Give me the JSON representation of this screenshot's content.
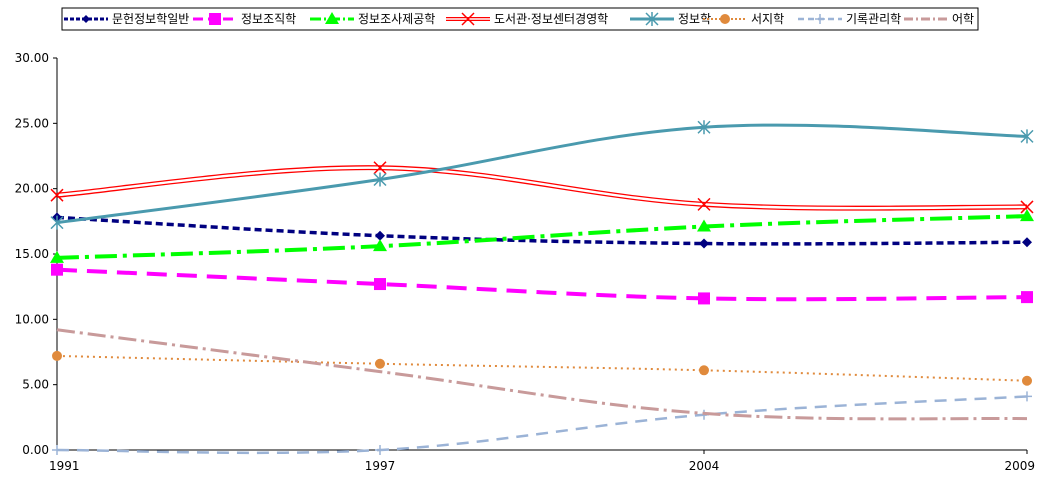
{
  "chart_data": {
    "type": "line",
    "categories": [
      "1991",
      "1997",
      "2004",
      "2009"
    ],
    "ylim": [
      0,
      30
    ],
    "yticks": [
      "0.00",
      "5.00",
      "10.00",
      "15.00",
      "20.00",
      "25.00",
      "30.00"
    ],
    "grid": false,
    "legend_position": "top",
    "series": [
      {
        "name": "문헌정보학일반",
        "values": [
          17.8,
          16.4,
          15.8,
          15.9
        ],
        "color": "#000080",
        "dash": "7,4",
        "width": 3.5,
        "marker": "diamond"
      },
      {
        "name": "정보조직학",
        "values": [
          13.8,
          12.7,
          11.6,
          11.7
        ],
        "color": "#FF00FF",
        "dash": "20,10",
        "width": 4,
        "marker": "square"
      },
      {
        "name": "정보조사제공학",
        "values": [
          14.7,
          15.6,
          17.1,
          17.9
        ],
        "color": "#00FF00",
        "dash": "22,6,4,6",
        "width": 4,
        "marker": "triangle"
      },
      {
        "name": "도서관·정보센터경영학",
        "values": [
          19.5,
          21.6,
          18.8,
          18.6
        ],
        "color": "#FF0000",
        "dash": "",
        "width": 1.2,
        "marker": "x",
        "double": true
      },
      {
        "name": "정보학",
        "values": [
          17.4,
          20.7,
          24.7,
          24.0
        ],
        "color": "#4A9AAE",
        "dash": "",
        "width": 3,
        "marker": "star"
      },
      {
        "name": "서지학",
        "values": [
          7.2,
          6.6,
          6.1,
          5.3
        ],
        "color": "#E08A3C",
        "dash": "2,4",
        "width": 2,
        "marker": "circle"
      },
      {
        "name": "기록관리학",
        "values": [
          0.0,
          0.0,
          2.7,
          4.1
        ],
        "color": "#9BB3D6",
        "dash": "12,8",
        "width": 2.5,
        "marker": "plus"
      },
      {
        "name": "어학",
        "values": [
          9.2,
          6.0,
          2.8,
          2.4
        ],
        "color": "#C89A9A",
        "dash": "18,5,3,5",
        "width": 3,
        "marker": "none"
      }
    ]
  }
}
